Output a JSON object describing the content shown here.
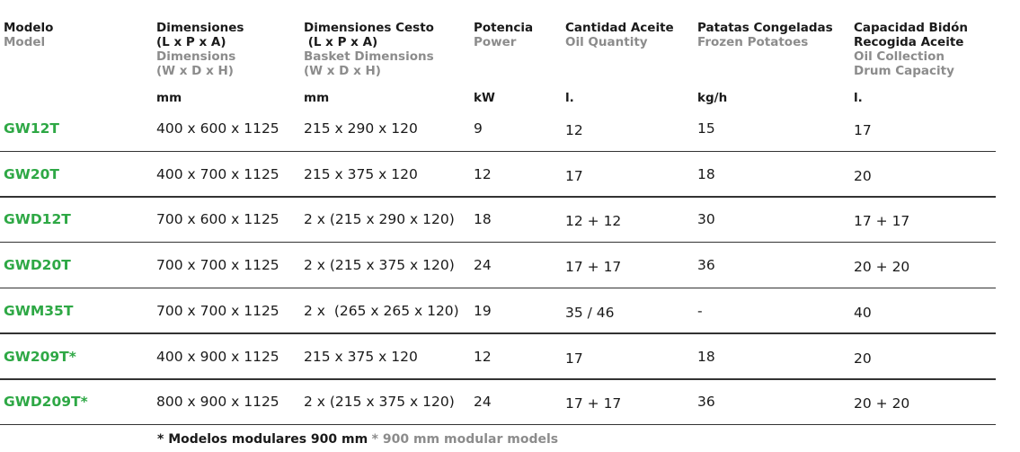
{
  "headers": [
    {
      "es": [
        "Modelo"
      ],
      "en": [
        "Model"
      ],
      "unit": ""
    },
    {
      "es": [
        "Dimensiones",
        "(L x P x A)"
      ],
      "en": [
        "Dimensions",
        "(W x D x H)"
      ],
      "unit": "mm"
    },
    {
      "es": [
        "Dimensiones Cesto",
        " (L x P x A)"
      ],
      "en": [
        "Basket Dimensions",
        "(W x D x H)"
      ],
      "unit": "mm"
    },
    {
      "es": [
        "Potencia"
      ],
      "en": [
        "Power"
      ],
      "unit": "kW"
    },
    {
      "es": [
        "Cantidad Aceite"
      ],
      "en": [
        "Oil Quantity"
      ],
      "unit": "l."
    },
    {
      "es": [
        "Patatas Congeladas"
      ],
      "en": [
        "Frozen Potatoes"
      ],
      "unit": "kg/h"
    },
    {
      "es": [
        "Capacidad Bidón",
        "Recogida Aceite"
      ],
      "en": [
        "Oil Collection",
        "Drum Capacity"
      ],
      "unit": "l."
    }
  ],
  "rows": [
    [
      "GW12T",
      "400 x 600 x 1125",
      "215 x 290 x 120",
      "9",
      "12",
      "15",
      "17"
    ],
    [
      "GW20T",
      "400 x 700 x 1125",
      "215 x 375 x 120",
      "12",
      "17",
      "18",
      "20"
    ],
    [
      "GWD12T",
      "700 x 600 x 1125",
      "2 x (215 x 290 x 120)",
      "18",
      "12 + 12",
      "30",
      "17 + 17"
    ],
    [
      "GWD20T",
      "700 x 700 x 1125",
      "2 x (215 x 375 x 120)",
      "24",
      "17 + 17",
      "36",
      "20 + 20"
    ],
    [
      "GWM35T",
      "700 x 700 x 1125",
      "2 x  (265 x 265 x 120)",
      "19",
      "35 / 46",
      "-",
      "40"
    ],
    [
      "GW209T*",
      "400 x 900 x 1125",
      "215 x 375 x 120",
      "12",
      "17",
      "18",
      "20"
    ],
    [
      "GWD209T*",
      "800 x 900 x 1125",
      "2 x (215 x 375 x 120)",
      "24",
      "17 + 17",
      "36",
      "20 + 20"
    ]
  ],
  "footnote": {
    "es": "* Modelos modulares 900 mm",
    "en": "* 900 mm modular models"
  },
  "colors": {
    "model_green": "#2ea845",
    "secondary_gray": "#8c8c8c",
    "text": "#1a1a1a"
  }
}
